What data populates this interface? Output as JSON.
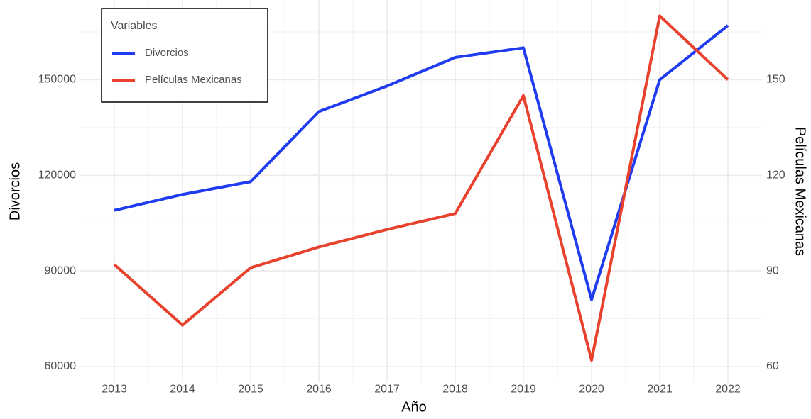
{
  "chart_data": {
    "type": "line",
    "x_label": "Año",
    "y_label": "Divorcios",
    "y2_label": "Películas Mexicanas",
    "categories": [
      "2013",
      "2014",
      "2015",
      "2016",
      "2017",
      "2018",
      "2019",
      "2020",
      "2021",
      "2022"
    ],
    "series": [
      {
        "name": "Divorcios",
        "color": "#1f3cf0",
        "values": [
          109000,
          114000,
          118000,
          140000,
          148000,
          157000,
          160000,
          81000,
          150000,
          167000
        ]
      },
      {
        "name": "Películas Mexicanas",
        "color": "#e8412d",
        "axis": "y2",
        "values": [
          92,
          73,
          91,
          97.5,
          103,
          108,
          145,
          62,
          170,
          150
        ]
      }
    ],
    "ylim": [
      55000,
      175000
    ],
    "yticks": [
      60000,
      90000,
      120000,
      150000
    ],
    "y2lim": [
      55,
      175
    ],
    "y2ticks": [
      60,
      90,
      120,
      150
    ],
    "legend_title": "Variables",
    "legend": "top-left",
    "grid": true
  }
}
